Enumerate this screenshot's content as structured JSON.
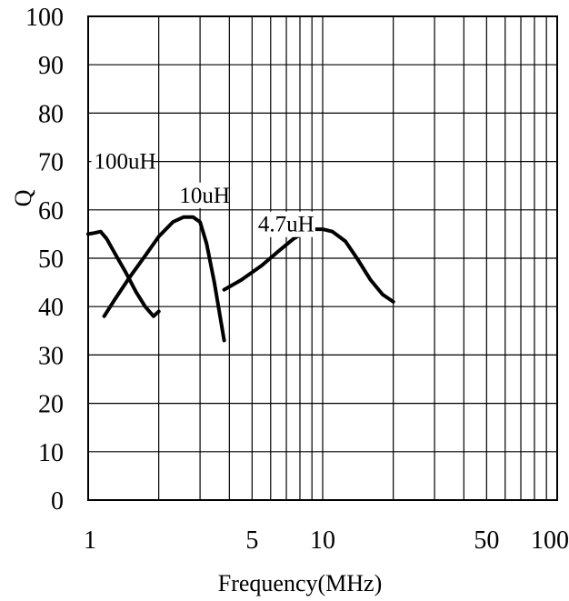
{
  "chart_data": {
    "type": "line",
    "title": "",
    "xlabel": "Frequency(MHz)",
    "ylabel": "Q",
    "xscale": "log",
    "xlim": [
      1,
      100
    ],
    "ylim": [
      0,
      100
    ],
    "grid": true,
    "x_tick_labels": [
      "1",
      "5",
      "10",
      "50",
      "100"
    ],
    "y_tick_labels": [
      "0",
      "10",
      "20",
      "30",
      "40",
      "50",
      "60",
      "70",
      "80",
      "90",
      "100"
    ],
    "series": [
      {
        "name": "100uH",
        "x": [
          1.0,
          1.06,
          1.13,
          1.2,
          1.3,
          1.45,
          1.6,
          1.75,
          1.9,
          2.0
        ],
        "y": [
          55,
          55.2,
          55.5,
          54,
          51,
          47,
          43,
          40,
          38,
          39
        ]
      },
      {
        "name": "10uH",
        "x": [
          1.17,
          1.3,
          1.5,
          1.75,
          2.0,
          2.3,
          2.55,
          2.8,
          3.0,
          3.2,
          3.45,
          3.65,
          3.8
        ],
        "y": [
          38,
          41.5,
          46,
          50.5,
          54.5,
          57.5,
          58.5,
          58.5,
          57.5,
          53,
          45,
          38,
          33
        ]
      },
      {
        "name": "4.7uH",
        "x": [
          3.8,
          4.5,
          5.5,
          6.5,
          7.5,
          8.5,
          9.3,
          10.0,
          11.0,
          12.5,
          14.0,
          16.0,
          18.0,
          20.0
        ],
        "y": [
          43.5,
          45.5,
          48.5,
          51.5,
          54,
          55.5,
          56,
          56,
          55.5,
          53.5,
          50,
          45.5,
          42.5,
          41
        ]
      }
    ]
  }
}
